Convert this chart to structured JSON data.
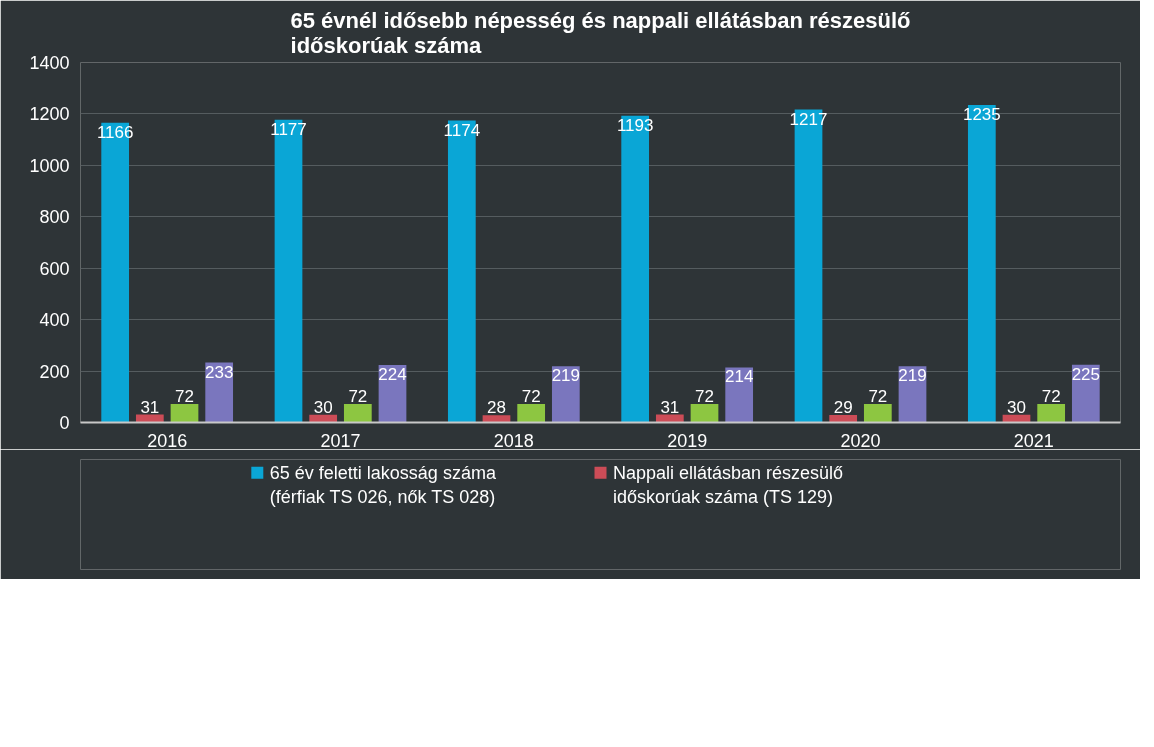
{
  "chart_data": {
    "type": "bar",
    "title": "65 évnél idősebb népesség és nappali ellátásban részesülő időskorúak száma",
    "categories": [
      "2016",
      "2017",
      "2018",
      "2019",
      "2020",
      "2021"
    ],
    "series": [
      {
        "name": "65 év feletti lakosság száma (férfiak TS 026, nők TS 028)",
        "color": "#0aa6d6",
        "values": [
          1166,
          1177,
          1174,
          1193,
          1217,
          1235
        ]
      },
      {
        "name": "Nappali ellátásban részesülő időskorúak száma (TS 129)",
        "color": "#cc4c57",
        "values": [
          31,
          30,
          28,
          31,
          29,
          30
        ]
      },
      {
        "color": "#8dc641",
        "values": [
          72,
          72,
          72,
          72,
          72,
          72
        ]
      },
      {
        "color": "#7a76be",
        "values": [
          233,
          224,
          219,
          214,
          219,
          225
        ]
      }
    ],
    "ylim": [
      0,
      1400
    ],
    "yticks": [
      0,
      200,
      400,
      600,
      800,
      1000,
      1200,
      1400
    ],
    "grid": "y",
    "data_labels": true,
    "legend": "bottom"
  }
}
